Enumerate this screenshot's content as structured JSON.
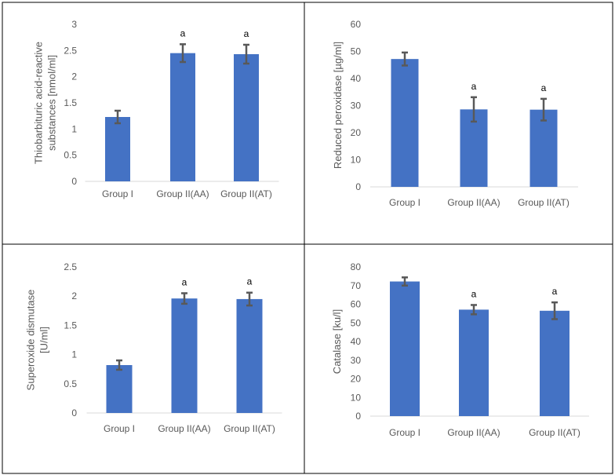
{
  "chart_data": [
    {
      "type": "bar",
      "categories": [
        "Group I",
        "Group II(AA)",
        "Group II(AT)"
      ],
      "values": [
        1.23,
        2.45,
        2.43
      ],
      "errors": [
        0.12,
        0.17,
        0.18
      ],
      "significance": [
        "",
        "a",
        "a"
      ],
      "ylabel_lines": [
        "Thiobarbituric acid-reactive",
        "substances [nmol/ml]"
      ],
      "ylim": [
        0,
        3
      ],
      "yticks": [
        0,
        0.5,
        1,
        1.5,
        2,
        2.5,
        3
      ],
      "ytick_labels": [
        "0",
        "0.5",
        "1",
        "1.5",
        "2",
        "2.5",
        "3"
      ],
      "grid": false
    },
    {
      "type": "bar",
      "categories": [
        "Group I",
        "Group II(AA)",
        "Group II(AT)"
      ],
      "values": [
        47.2,
        28.6,
        28.5
      ],
      "errors": [
        2.4,
        4.5,
        4.0
      ],
      "significance": [
        "",
        "a",
        "a"
      ],
      "ylabel_lines": [
        "Reduced peroxidase [µg/ml]"
      ],
      "ylim": [
        0,
        60
      ],
      "yticks": [
        0,
        10,
        20,
        30,
        40,
        50,
        60
      ],
      "ytick_labels": [
        "0",
        "10",
        "20",
        "30",
        "40",
        "50",
        "60"
      ],
      "grid": false
    },
    {
      "type": "bar",
      "categories": [
        "Group I",
        "Group II(AA)",
        "Group II(AT)"
      ],
      "values": [
        0.82,
        1.96,
        1.95
      ],
      "errors": [
        0.08,
        0.09,
        0.11
      ],
      "significance": [
        "",
        "a",
        "a"
      ],
      "ylabel_lines": [
        "Superoxide dismutase",
        "[U/ml]"
      ],
      "ylim": [
        0,
        2.5
      ],
      "yticks": [
        0,
        0.5,
        1,
        1.5,
        2,
        2.5
      ],
      "ytick_labels": [
        "0",
        "0.5",
        "1",
        "1.5",
        "2",
        "2.5"
      ],
      "grid": false
    },
    {
      "type": "bar",
      "categories": [
        "Group I",
        "Group II(AA)",
        "Group II(AT)"
      ],
      "values": [
        72.2,
        57.1,
        56.5
      ],
      "errors": [
        2.2,
        2.5,
        4.5
      ],
      "significance": [
        "",
        "a",
        "a"
      ],
      "ylabel_lines": [
        "Catalase [ku/l]"
      ],
      "ylim": [
        0,
        80
      ],
      "yticks": [
        0,
        10,
        20,
        30,
        40,
        50,
        60,
        70,
        80
      ],
      "ytick_labels": [
        "0",
        "10",
        "20",
        "30",
        "40",
        "50",
        "60",
        "70",
        "80"
      ],
      "grid": false
    }
  ],
  "colors": {
    "bar": "#4472c4",
    "error_bar": "#595959",
    "text": "#595959",
    "significance": "#000000",
    "border": "#000000"
  }
}
